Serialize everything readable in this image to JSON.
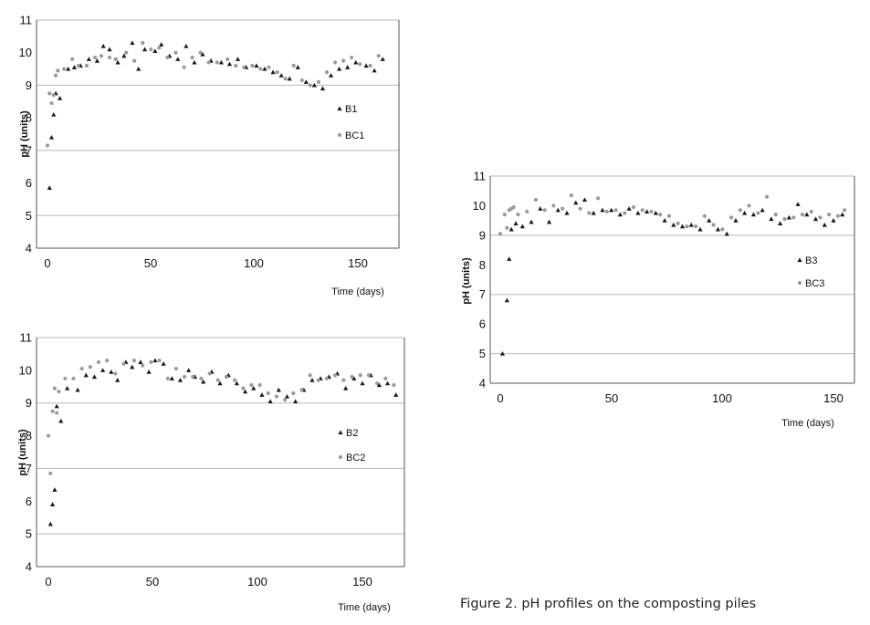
{
  "caption": "Figure 2. pH profiles on the composting piles",
  "colors": {
    "dark": "#1a1a1a",
    "light": "#9a9a9a",
    "grid": "#b8b8b8",
    "axis": "#555555"
  },
  "chart_data": [
    {
      "type": "scatter",
      "id": "pile1",
      "xlabel": "Time (days)",
      "ylabel": "pH (units)",
      "xlim": [
        0,
        170
      ],
      "ylim": [
        4,
        11
      ],
      "xticks": [
        "0",
        "50",
        "100",
        "150"
      ],
      "yticks": [
        "4",
        "5",
        "6",
        "7",
        "8",
        "9",
        "10",
        "11"
      ],
      "legend": [
        "B1",
        "BC1"
      ],
      "series": [
        {
          "name": "B1",
          "marker": "triangle",
          "x": [
            1,
            2,
            3,
            4,
            6,
            10,
            13,
            16,
            20,
            24,
            27,
            30,
            34,
            37,
            41,
            44,
            47,
            52,
            55,
            59,
            63,
            67,
            71,
            75,
            79,
            84,
            88,
            92,
            96,
            101,
            105,
            109,
            113,
            117,
            121,
            125,
            129,
            133,
            137,
            141,
            145,
            149,
            154,
            158,
            162
          ],
          "y": [
            5.85,
            7.4,
            8.1,
            8.75,
            8.6,
            9.5,
            9.55,
            9.6,
            9.8,
            9.75,
            10.2,
            10.1,
            9.7,
            9.9,
            10.3,
            9.5,
            10.1,
            10.05,
            10.25,
            9.9,
            9.8,
            10.2,
            9.7,
            9.95,
            9.75,
            9.7,
            9.65,
            9.8,
            9.55,
            9.6,
            9.5,
            9.4,
            9.3,
            9.2,
            9.55,
            9.1,
            9.0,
            8.9,
            9.3,
            9.5,
            9.55,
            9.7,
            9.6,
            9.45,
            9.8
          ]
        },
        {
          "name": "BC1",
          "marker": "circle",
          "x": [
            0,
            1,
            2,
            3,
            4,
            5,
            8,
            12,
            15,
            19,
            23,
            26,
            30,
            33,
            38,
            42,
            46,
            50,
            54,
            58,
            62,
            66,
            70,
            74,
            78,
            82,
            87,
            91,
            95,
            99,
            103,
            107,
            111,
            115,
            119,
            123,
            127,
            131,
            135,
            139,
            143,
            147,
            151,
            156,
            160
          ],
          "y": [
            7.15,
            8.75,
            8.45,
            8.7,
            9.3,
            9.45,
            9.5,
            9.8,
            9.6,
            9.6,
            9.85,
            9.9,
            9.85,
            9.8,
            10.0,
            9.75,
            10.3,
            10.1,
            10.15,
            9.85,
            10.0,
            9.55,
            9.85,
            10.0,
            9.7,
            9.7,
            9.8,
            9.6,
            9.55,
            9.6,
            9.5,
            9.55,
            9.4,
            9.2,
            9.6,
            9.15,
            9.0,
            9.1,
            9.4,
            9.7,
            9.75,
            9.85,
            9.65,
            9.6,
            9.9
          ]
        }
      ]
    },
    {
      "type": "scatter",
      "id": "pile2",
      "xlabel": "Time (days)",
      "ylabel": "pH (units)",
      "xlim": [
        0,
        172
      ],
      "ylim": [
        4,
        11
      ],
      "xticks": [
        "0",
        "50",
        "100",
        "150"
      ],
      "yticks": [
        "4",
        "5",
        "6",
        "7",
        "8",
        "9",
        "10",
        "11"
      ],
      "legend": [
        "B2",
        "BC2"
      ],
      "series": [
        {
          "name": "B2",
          "marker": "triangle",
          "x": [
            1,
            2,
            3,
            4,
            6,
            9,
            14,
            18,
            22,
            26,
            30,
            33,
            37,
            40,
            44,
            48,
            51,
            55,
            59,
            63,
            67,
            70,
            74,
            78,
            82,
            86,
            90,
            94,
            98,
            102,
            106,
            110,
            114,
            118,
            122,
            126,
            130,
            134,
            138,
            142,
            146,
            150,
            154,
            158,
            162,
            166
          ],
          "y": [
            5.3,
            5.9,
            6.35,
            8.9,
            8.45,
            9.45,
            9.4,
            9.85,
            9.8,
            10.0,
            9.95,
            9.7,
            10.25,
            10.1,
            10.25,
            9.95,
            10.3,
            10.2,
            9.75,
            9.7,
            10.0,
            9.8,
            9.65,
            9.95,
            9.6,
            9.85,
            9.6,
            9.35,
            9.45,
            9.25,
            9.05,
            9.4,
            9.2,
            9.05,
            9.4,
            9.7,
            9.75,
            9.8,
            9.9,
            9.45,
            9.75,
            9.6,
            9.85,
            9.55,
            9.6,
            9.25
          ]
        },
        {
          "name": "BC2",
          "marker": "circle",
          "x": [
            0,
            1,
            2,
            3,
            4,
            5,
            8,
            12,
            16,
            20,
            24,
            28,
            32,
            36,
            41,
            45,
            49,
            53,
            57,
            61,
            65,
            69,
            73,
            77,
            81,
            85,
            89,
            93,
            97,
            101,
            105,
            109,
            113,
            117,
            121,
            125,
            129,
            133,
            137,
            141,
            145,
            149,
            153,
            157,
            161,
            165
          ],
          "y": [
            8.0,
            6.85,
            8.75,
            9.45,
            8.7,
            9.35,
            9.75,
            9.75,
            10.05,
            10.1,
            10.25,
            10.3,
            9.9,
            10.2,
            10.3,
            10.15,
            10.25,
            10.3,
            9.75,
            10.05,
            9.8,
            9.8,
            9.75,
            9.9,
            9.7,
            9.8,
            9.7,
            9.45,
            9.55,
            9.55,
            9.3,
            9.2,
            9.1,
            9.3,
            9.4,
            9.85,
            9.7,
            9.75,
            9.85,
            9.7,
            9.8,
            9.85,
            9.85,
            9.6,
            9.75,
            9.55
          ]
        }
      ]
    },
    {
      "type": "scatter",
      "id": "pile3",
      "xlabel": "Time (days)",
      "ylabel": "pH (units)",
      "xlim": [
        0,
        160
      ],
      "ylim": [
        4,
        11
      ],
      "xticks": [
        "0",
        "50",
        "100",
        "150"
      ],
      "yticks": [
        "4",
        "5",
        "6",
        "7",
        "8",
        "9",
        "10",
        "11"
      ],
      "legend": [
        "B3",
        "BC3"
      ],
      "series": [
        {
          "name": "B3",
          "marker": "triangle",
          "x": [
            1,
            3,
            4,
            5,
            7,
            10,
            14,
            18,
            22,
            26,
            30,
            34,
            38,
            42,
            46,
            50,
            54,
            58,
            62,
            66,
            70,
            74,
            78,
            82,
            86,
            90,
            94,
            98,
            102,
            106,
            110,
            114,
            118,
            122,
            126,
            130,
            134,
            138,
            142,
            146,
            150,
            154
          ],
          "y": [
            5.0,
            6.8,
            8.2,
            9.2,
            9.4,
            9.3,
            9.45,
            9.9,
            9.45,
            9.85,
            9.75,
            10.1,
            10.2,
            9.75,
            9.85,
            9.85,
            9.7,
            9.9,
            9.75,
            9.8,
            9.75,
            9.5,
            9.35,
            9.3,
            9.35,
            9.2,
            9.5,
            9.2,
            9.05,
            9.5,
            9.75,
            9.7,
            9.85,
            9.55,
            9.4,
            9.6,
            10.05,
            9.7,
            9.55,
            9.35,
            9.5,
            9.7
          ]
        },
        {
          "name": "BC3",
          "marker": "circle",
          "x": [
            0,
            2,
            3,
            4,
            5,
            6,
            8,
            12,
            16,
            20,
            24,
            28,
            32,
            36,
            40,
            44,
            48,
            52,
            56,
            60,
            64,
            68,
            72,
            76,
            80,
            84,
            88,
            92,
            96,
            100,
            104,
            108,
            112,
            116,
            120,
            124,
            128,
            132,
            136,
            140,
            144,
            148,
            152,
            155
          ],
          "y": [
            9.05,
            9.7,
            9.25,
            9.85,
            9.9,
            9.95,
            9.7,
            9.8,
            10.2,
            9.85,
            10.0,
            9.9,
            10.35,
            9.9,
            9.75,
            10.25,
            9.8,
            9.85,
            9.75,
            9.95,
            9.85,
            9.8,
            9.7,
            9.65,
            9.4,
            9.3,
            9.3,
            9.65,
            9.35,
            9.2,
            9.6,
            9.85,
            10.0,
            9.75,
            10.3,
            9.7,
            9.55,
            9.6,
            9.7,
            9.8,
            9.6,
            9.7,
            9.65,
            9.85
          ]
        }
      ]
    }
  ]
}
